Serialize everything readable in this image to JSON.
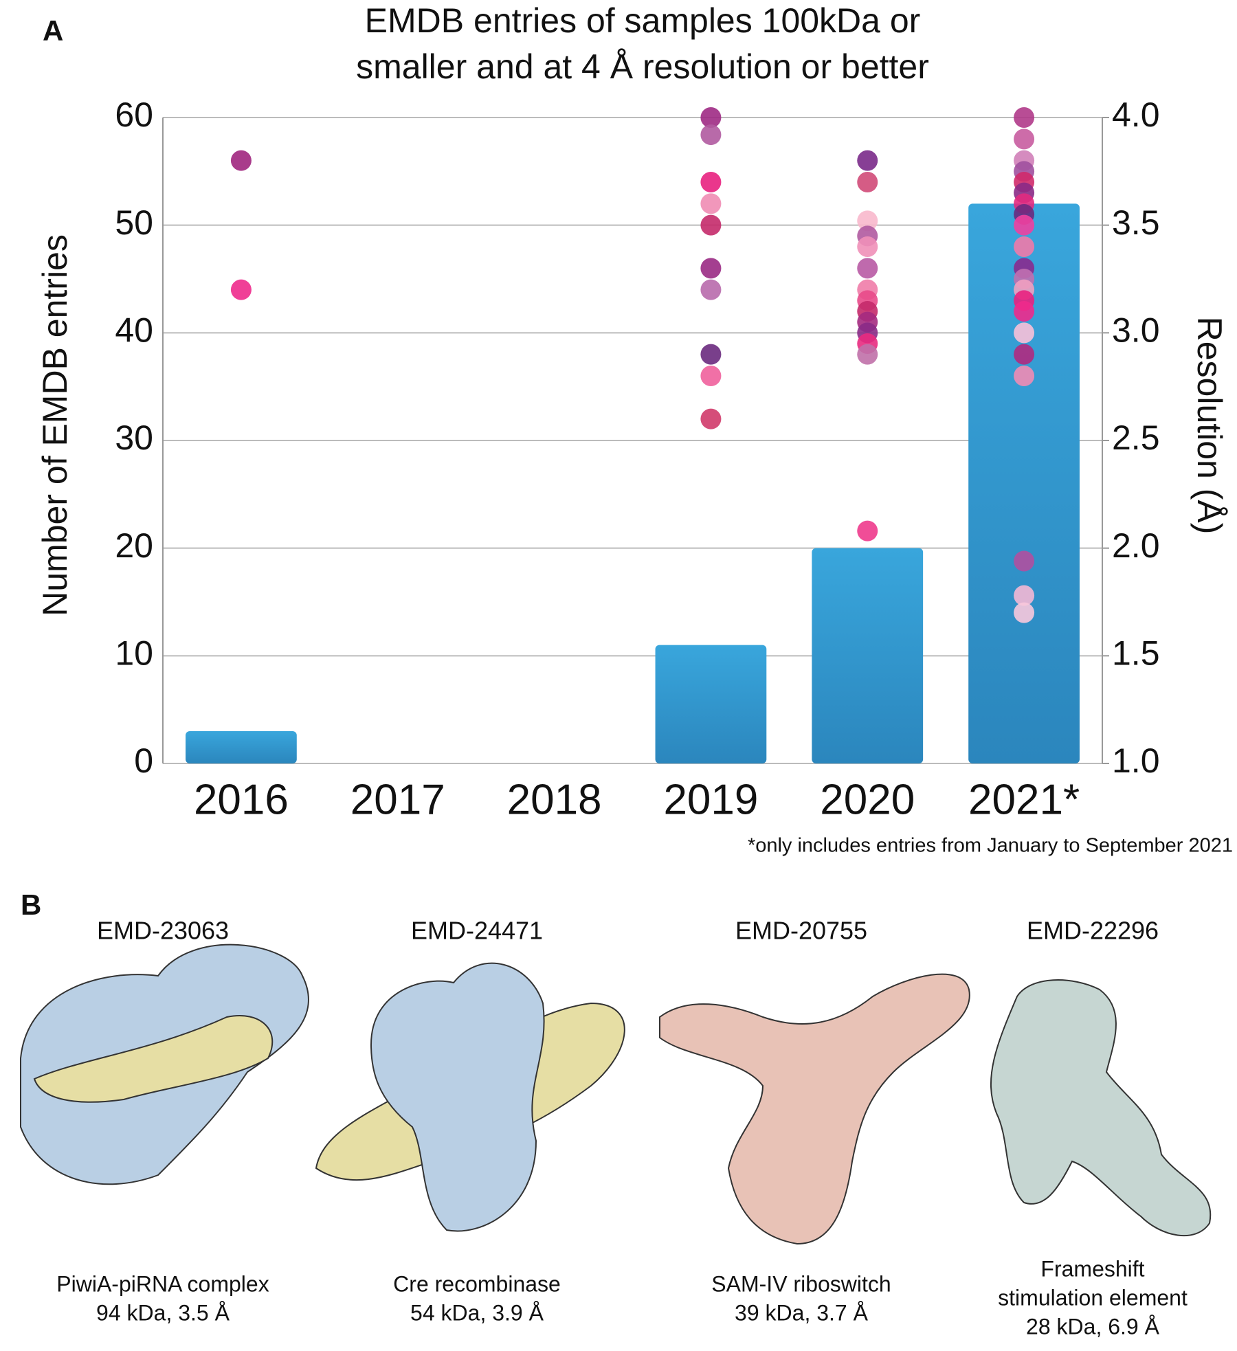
{
  "panel_a": {
    "label": "A"
  },
  "chart_data": {
    "type": "bar",
    "title": [
      "EMDB entries of samples 100kDa or",
      "smaller and at 4 Å resolution or better"
    ],
    "y_label": "Number of EMDB entries",
    "y2_label": "Resolution (Å)",
    "footnote": "*only includes entries from January to September 2021",
    "categories": [
      "2016",
      "2017",
      "2018",
      "2019",
      "2020",
      "2021*"
    ],
    "series": [
      {
        "type": "bar",
        "color": "#2e95cc",
        "values": [
          3,
          0,
          0,
          11,
          20,
          52
        ]
      },
      {
        "type": "scatter",
        "axis": "y2",
        "x": [
          "2016",
          "2016",
          "2019",
          "2019",
          "2019",
          "2019",
          "2019",
          "2019",
          "2019",
          "2019",
          "2019",
          "2019",
          "2020",
          "2020",
          "2020",
          "2020",
          "2020",
          "2020",
          "2020",
          "2020",
          "2020",
          "2020",
          "2020",
          "2020",
          "2020",
          "2020",
          "2021*",
          "2021*",
          "2021*",
          "2021*",
          "2021*",
          "2021*",
          "2021*",
          "2021*",
          "2021*",
          "2021*",
          "2021*",
          "2021*",
          "2021*",
          "2021*",
          "2021*",
          "2021*",
          "2021*",
          "2021*",
          "2021*",
          "2021*",
          "2021*"
        ],
        "values": [
          3.8,
          3.2,
          4.0,
          3.92,
          3.7,
          3.6,
          3.5,
          3.3,
          3.2,
          2.9,
          2.8,
          2.6,
          3.8,
          3.7,
          3.52,
          3.45,
          3.4,
          3.3,
          3.2,
          3.15,
          3.1,
          3.05,
          3.0,
          2.95,
          2.9,
          2.08,
          4.0,
          3.9,
          3.8,
          3.75,
          3.7,
          3.65,
          3.6,
          3.55,
          3.5,
          3.4,
          3.3,
          3.25,
          3.2,
          3.15,
          3.1,
          3.0,
          2.9,
          2.8,
          1.94,
          1.78,
          1.7
        ],
        "colors": [
          "#a0267e",
          "#ee2a8c",
          "#9e2a84",
          "#b05aa0",
          "#e8217f",
          "#f08cb4",
          "#c42a6a",
          "#9a2a84",
          "#b86aac",
          "#6a2a7e",
          "#f0609c",
          "#d03a6a",
          "#7a2a8a",
          "#d04a78",
          "#f8b8cc",
          "#b05aa0",
          "#f090b8",
          "#b85aa4",
          "#f07ca8",
          "#e84a8a",
          "#c42a6a",
          "#a42a80",
          "#8a2a86",
          "#e82a80",
          "#c070a8",
          "#ee3a8c",
          "#b03a8a",
          "#c85ca0",
          "#d080b8",
          "#a0509e",
          "#d02a6a",
          "#8a2a86",
          "#e22a80",
          "#6a2a7e",
          "#f040a0",
          "#f07aa8",
          "#8a2a8e",
          "#c070b0",
          "#f0a0c0",
          "#e8217f",
          "#ee2a8c",
          "#f8c0d8",
          "#b02a80",
          "#f08cb4",
          "#b050a0",
          "#f4b8d4",
          "#f8c8dc"
        ]
      }
    ],
    "ylim": [
      0,
      60
    ],
    "yticks": [
      0,
      10,
      20,
      30,
      40,
      50,
      60
    ],
    "y2lim": [
      1,
      4
    ],
    "y2ticks": [
      {
        "value": 1,
        "label": "1.0"
      },
      1.5,
      {
        "value": 2,
        "label": "2.0"
      },
      2.5,
      {
        "value": 3,
        "label": "3.0"
      },
      3.5,
      {
        "value": 4,
        "label": "4.0"
      }
    ],
    "grid": true
  },
  "panel_b": {
    "label": "B",
    "structures": [
      {
        "id": "EMD-23063",
        "caption": [
          "PiwiA-piRNA complex",
          "94 kDa, 3.5 Å"
        ]
      },
      {
        "id": "EMD-24471",
        "caption": [
          "Cre recombinase",
          "54 kDa, 3.9 Å"
        ]
      },
      {
        "id": "EMD-20755",
        "caption": [
          "SAM-IV riboswitch",
          "39 kDa, 3.7 Å"
        ]
      },
      {
        "id": "EMD-22296",
        "caption": [
          "Frameshift",
          "stimulation element",
          "28 kDa, 6.9 Å"
        ]
      }
    ]
  }
}
